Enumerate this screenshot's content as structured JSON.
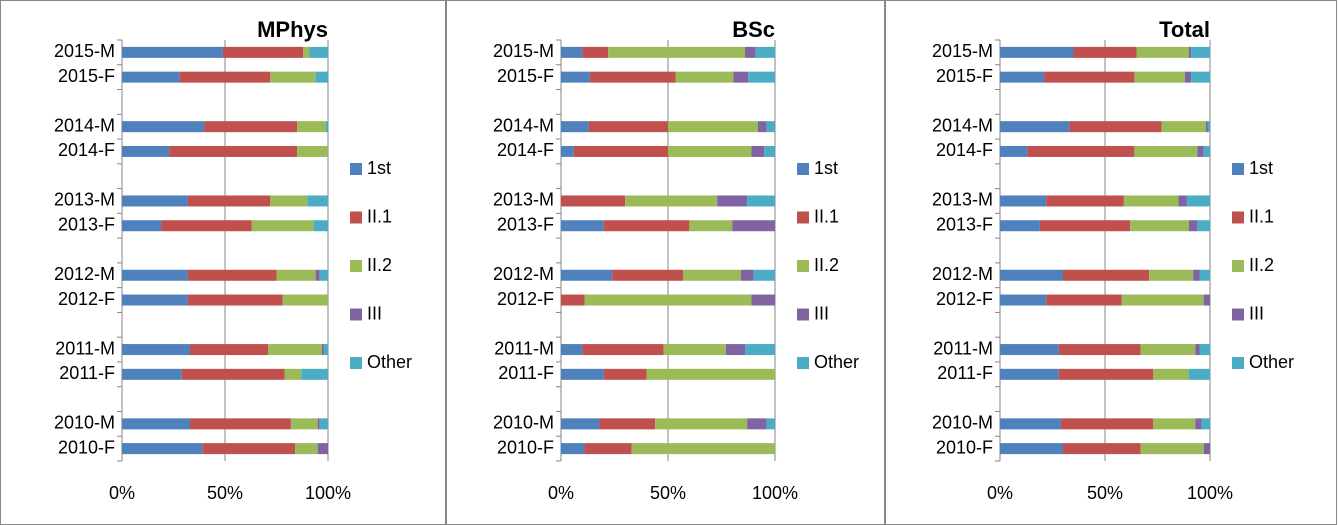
{
  "chart_data": [
    {
      "type": "bar",
      "title": "MPhys",
      "categories": [
        "2015-M",
        "2015-F",
        null,
        "2014-M",
        "2014-F",
        null,
        "2013-M",
        "2013-F",
        null,
        "2012-M",
        "2012-F",
        null,
        "2011-M",
        "2011-F",
        null,
        "2010-M",
        "2010-F"
      ],
      "series": [
        {
          "name": "1st",
          "color": "#4f81bd",
          "values": [
            49,
            28,
            null,
            40,
            23,
            null,
            32,
            19,
            null,
            32,
            32,
            null,
            33,
            29,
            null,
            33,
            39
          ]
        },
        {
          "name": "II.1",
          "color": "#c0504d",
          "values": [
            39,
            44,
            null,
            45,
            62,
            null,
            40,
            44,
            null,
            43,
            46,
            null,
            38,
            50,
            null,
            49,
            45
          ]
        },
        {
          "name": "II.2",
          "color": "#9bbb59",
          "values": [
            3,
            22,
            null,
            14,
            15,
            null,
            18,
            30,
            null,
            19,
            22,
            null,
            26,
            8,
            null,
            13,
            11
          ]
        },
        {
          "name": "III",
          "color": "#8064a2",
          "values": [
            0,
            0,
            null,
            0,
            0,
            null,
            0,
            0,
            null,
            2,
            0,
            null,
            1,
            0,
            null,
            1,
            5
          ]
        },
        {
          "name": "Other",
          "color": "#4bacc6",
          "values": [
            9,
            6,
            null,
            1,
            0,
            null,
            10,
            7,
            null,
            4,
            0,
            null,
            2,
            13,
            null,
            4,
            0
          ]
        }
      ],
      "xlim": [
        0,
        100
      ],
      "xticks": [
        {
          "value": 0,
          "label": "0%"
        },
        {
          "value": 50,
          "label": "50%"
        },
        {
          "value": 100,
          "label": "100%"
        }
      ],
      "grid": true
    },
    {
      "type": "bar",
      "title": "BSc",
      "categories": [
        "2015-M",
        "2015-F",
        null,
        "2014-M",
        "2014-F",
        null,
        "2013-M",
        "2013-F",
        null,
        "2012-M",
        "2012-F",
        null,
        "2011-M",
        "2011-F",
        null,
        "2010-M",
        "2010-F"
      ],
      "series": [
        {
          "name": "1st",
          "color": "#4f81bd",
          "values": [
            10,
            13.5,
            null,
            13,
            6,
            null,
            0,
            20,
            null,
            24,
            0,
            null,
            10,
            20,
            null,
            18,
            11
          ]
        },
        {
          "name": "II.1",
          "color": "#c0504d",
          "values": [
            12,
            40,
            null,
            37,
            44,
            null,
            30,
            40,
            null,
            33,
            11,
            null,
            38,
            20,
            null,
            26,
            22
          ]
        },
        {
          "name": "II.2",
          "color": "#9bbb59",
          "values": [
            64,
            27,
            null,
            42,
            39,
            null,
            43,
            20,
            null,
            27,
            78,
            null,
            29,
            60,
            null,
            43,
            67
          ]
        },
        {
          "name": "III",
          "color": "#8064a2",
          "values": [
            5,
            7,
            null,
            4,
            6,
            null,
            14,
            20,
            null,
            6,
            11,
            null,
            9,
            0,
            null,
            9,
            0
          ]
        },
        {
          "name": "Other",
          "color": "#4bacc6",
          "values": [
            9,
            12.5,
            null,
            4,
            5,
            null,
            13,
            0,
            null,
            10,
            0,
            null,
            14,
            0,
            null,
            4,
            0
          ]
        }
      ],
      "xlim": [
        0,
        100
      ],
      "xticks": [
        {
          "value": 0,
          "label": "0%"
        },
        {
          "value": 50,
          "label": "50%"
        },
        {
          "value": 100,
          "label": "100%"
        }
      ],
      "grid": true
    },
    {
      "type": "bar",
      "title": "Total",
      "categories": [
        "2015-M",
        "2015-F",
        null,
        "2014-M",
        "2014-F",
        null,
        "2013-M",
        "2013-F",
        null,
        "2012-M",
        "2012-F",
        null,
        "2011-M",
        "2011-F",
        null,
        "2010-M",
        "2010-F"
      ],
      "series": [
        {
          "name": "1st",
          "color": "#4f81bd",
          "values": [
            35,
            21,
            null,
            33,
            13,
            null,
            22,
            19,
            null,
            30,
            22,
            null,
            28,
            28,
            null,
            29,
            30
          ]
        },
        {
          "name": "II.1",
          "color": "#c0504d",
          "values": [
            30,
            43,
            null,
            44,
            51,
            null,
            37,
            43,
            null,
            41,
            36,
            null,
            39,
            45,
            null,
            44,
            37
          ]
        },
        {
          "name": "II.2",
          "color": "#9bbb59",
          "values": [
            25,
            24,
            null,
            21,
            30,
            null,
            26,
            28,
            null,
            21,
            39,
            null,
            26,
            17,
            null,
            20,
            30
          ]
        },
        {
          "name": "III",
          "color": "#8064a2",
          "values": [
            1,
            3,
            null,
            1,
            3,
            null,
            4,
            4,
            null,
            3,
            3,
            null,
            2,
            0,
            null,
            3,
            3
          ]
        },
        {
          "name": "Other",
          "color": "#4bacc6",
          "values": [
            9,
            9,
            null,
            1,
            3,
            null,
            11,
            6,
            null,
            5,
            0,
            null,
            5,
            10,
            null,
            4,
            0
          ]
        }
      ],
      "xlim": [
        0,
        100
      ],
      "xticks": [
        {
          "value": 0,
          "label": "0%"
        },
        {
          "value": 50,
          "label": "50%"
        },
        {
          "value": 100,
          "label": "100%"
        }
      ],
      "grid": true
    }
  ]
}
